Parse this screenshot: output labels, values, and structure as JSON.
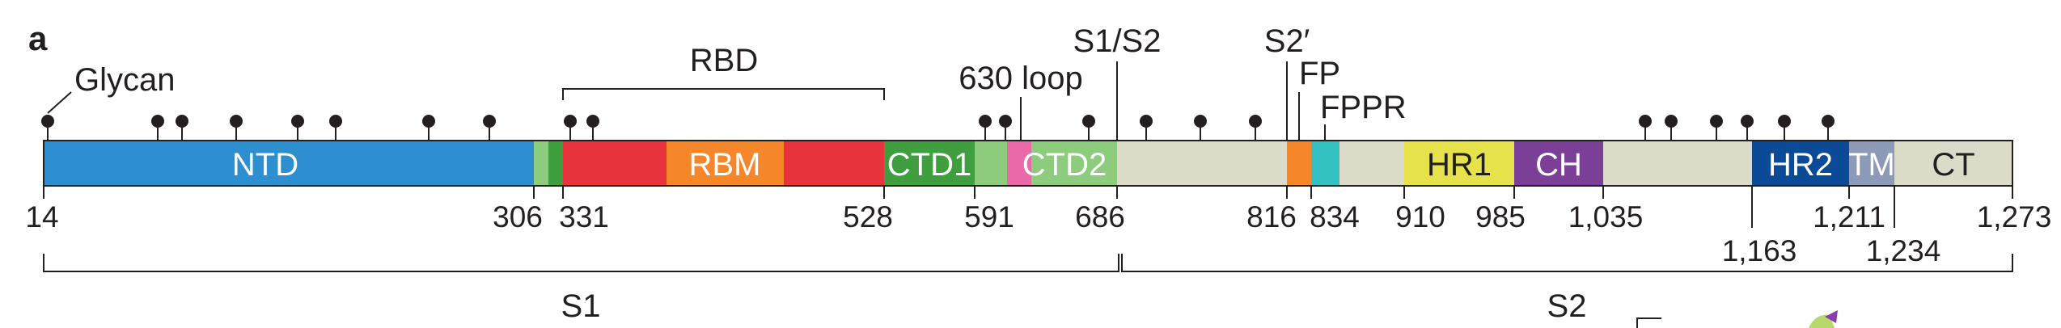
{
  "panel_label": "a",
  "glycan_label": "Glycan",
  "rbd_label": "RBD",
  "loop_label": "630 loop",
  "s1s2_label": "S1/S2",
  "s2prime_label": "S2′",
  "fp_label": "FP",
  "fppr_label": "FPPR",
  "s1_label": "S1",
  "s2_label": "S2",
  "domains": [
    {
      "id": "ntd",
      "label": "NTD",
      "color": "#2e8fd0"
    },
    {
      "id": "rbd-light",
      "label": "",
      "color": "#8ccc7c"
    },
    {
      "id": "rbd-green",
      "label": "",
      "color": "#3f9f3f"
    },
    {
      "id": "rbd-red-1",
      "label": "",
      "color": "#e8323c"
    },
    {
      "id": "rbm",
      "label": "RBM",
      "color": "#f5872a"
    },
    {
      "id": "rbd-red-2",
      "label": "",
      "color": "#e8323c"
    },
    {
      "id": "ctd1",
      "label": "CTD1",
      "color": "#3f9f3f"
    },
    {
      "id": "ctd1-light",
      "label": "",
      "color": "#8ccc7c"
    },
    {
      "id": "loop-pink",
      "label": "",
      "color": "#e86aa8"
    },
    {
      "id": "ctd2",
      "label": "CTD2",
      "color": "#8ccc7c"
    },
    {
      "id": "s2-gap-1",
      "label": "",
      "color": "#dcdac8"
    },
    {
      "id": "fp",
      "label": "",
      "color": "#f5872a"
    },
    {
      "id": "fppr",
      "label": "",
      "color": "#33c1c1"
    },
    {
      "id": "s2-gap-2",
      "label": "",
      "color": "#dcdac8"
    },
    {
      "id": "hr1",
      "label": "HR1",
      "color": "#e6e34a"
    },
    {
      "id": "ch",
      "label": "CH",
      "color": "#7b3f98"
    },
    {
      "id": "s2-gap-3",
      "label": "",
      "color": "#dcdac8"
    },
    {
      "id": "hr2",
      "label": "HR2",
      "color": "#0a4a96"
    },
    {
      "id": "tm",
      "label": "TM",
      "color": "#8c9ab8"
    },
    {
      "id": "ct",
      "label": "CT",
      "color": "#dcdac8"
    }
  ],
  "residues_top_row": [
    "14",
    "306",
    "331",
    "528",
    "591",
    "686",
    "816",
    "834",
    "910",
    "985",
    "1,035",
    "1,273"
  ],
  "residues_bottom_row": [
    "1,163",
    "1,211",
    "1,234"
  ]
}
